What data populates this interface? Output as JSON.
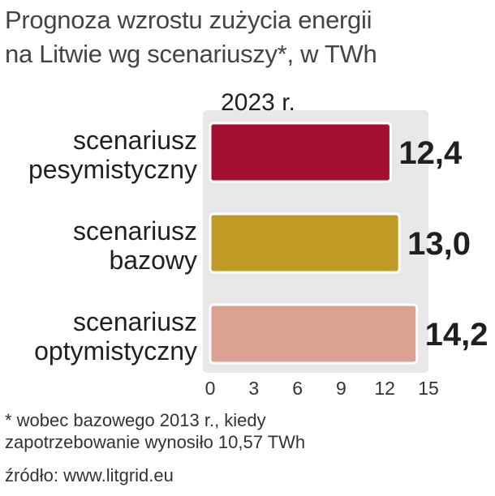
{
  "title_line1": "Prognoza wzrostu zużycia energii",
  "title_line2": "na Litwie wg scenariuszy*, w TWh",
  "footnote_line1": "* wobec bazowego 2013 r., kiedy",
  "footnote_line2": "zapotrzebowanie wynosiło 10,57 TWh",
  "source": "źródło: www.litgrid.eu",
  "chart_data": {
    "type": "bar",
    "orientation": "horizontal",
    "year_label": "2023 r.",
    "categories": [
      [
        "scenariusz",
        "pesymistyczny"
      ],
      [
        "scenariusz",
        "bazowy"
      ],
      [
        "scenariusz",
        "optymistyczny"
      ]
    ],
    "values": [
      12.4,
      13.0,
      14.2
    ],
    "value_labels": [
      "12,4",
      "13,0",
      "14,2"
    ],
    "bar_colors": [
      "#a30f2e",
      "#c09a24",
      "#dba292"
    ],
    "xlim": [
      0,
      15
    ],
    "xticks": [
      0,
      3,
      6,
      9,
      12,
      15
    ],
    "plot_background": "#e8e8e8",
    "grid": false,
    "legend": "none"
  }
}
